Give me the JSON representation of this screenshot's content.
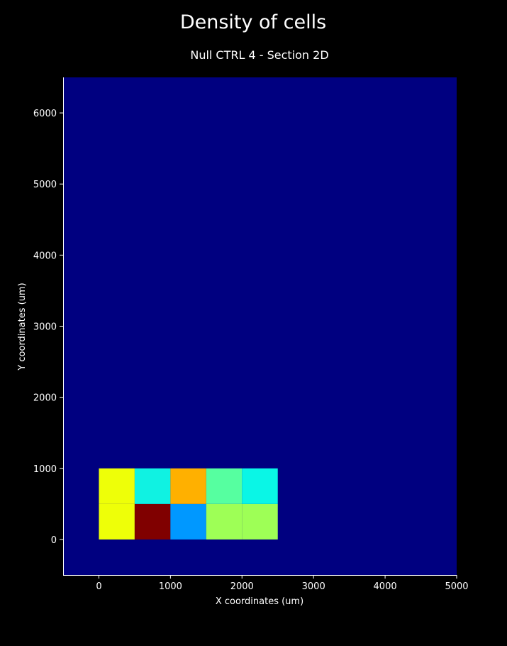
{
  "chart_data": {
    "type": "heatmap",
    "title": "Density of cells",
    "subtitle": "Null CTRL 4 - Section 2D",
    "xlabel": "X coordinates (um)",
    "ylabel": "Y coordinates (um)",
    "xlim": [
      -500,
      5000
    ],
    "ylim": [
      -500,
      6500
    ],
    "x_ticks": [
      0,
      1000,
      2000,
      3000,
      4000,
      5000
    ],
    "y_ticks": [
      0,
      1000,
      2000,
      3000,
      4000,
      5000,
      6000
    ],
    "x_tick_labels": [
      "0",
      "1000",
      "2000",
      "3000",
      "4000",
      "5000"
    ],
    "y_tick_labels": [
      "0",
      "1000",
      "2000",
      "3000",
      "4000",
      "5000",
      "6000"
    ],
    "colormap": "jet",
    "background_color": "#000080",
    "grid": false,
    "cells": [
      {
        "x0": 0,
        "x1": 500,
        "y0": 0,
        "y1": 500,
        "color": "#eeff08"
      },
      {
        "x0": 500,
        "x1": 1000,
        "y0": 0,
        "y1": 500,
        "color": "#800000"
      },
      {
        "x0": 1000,
        "x1": 1500,
        "y0": 0,
        "y1": 500,
        "color": "#0098ff"
      },
      {
        "x0": 1500,
        "x1": 2000,
        "y0": 0,
        "y1": 500,
        "color": "#9eff56"
      },
      {
        "x0": 2000,
        "x1": 2500,
        "y0": 0,
        "y1": 500,
        "color": "#9eff56"
      },
      {
        "x0": 0,
        "x1": 500,
        "y0": 500,
        "y1": 1000,
        "color": "#eeff08"
      },
      {
        "x0": 500,
        "x1": 1000,
        "y0": 500,
        "y1": 1000,
        "color": "#10f2e2"
      },
      {
        "x0": 1000,
        "x1": 1500,
        "y0": 500,
        "y1": 1000,
        "color": "#ffb000"
      },
      {
        "x0": 1500,
        "x1": 2000,
        "y0": 500,
        "y1": 1000,
        "color": "#56ffa0"
      },
      {
        "x0": 2000,
        "x1": 2500,
        "y0": 500,
        "y1": 1000,
        "color": "#0af6e6"
      }
    ]
  }
}
